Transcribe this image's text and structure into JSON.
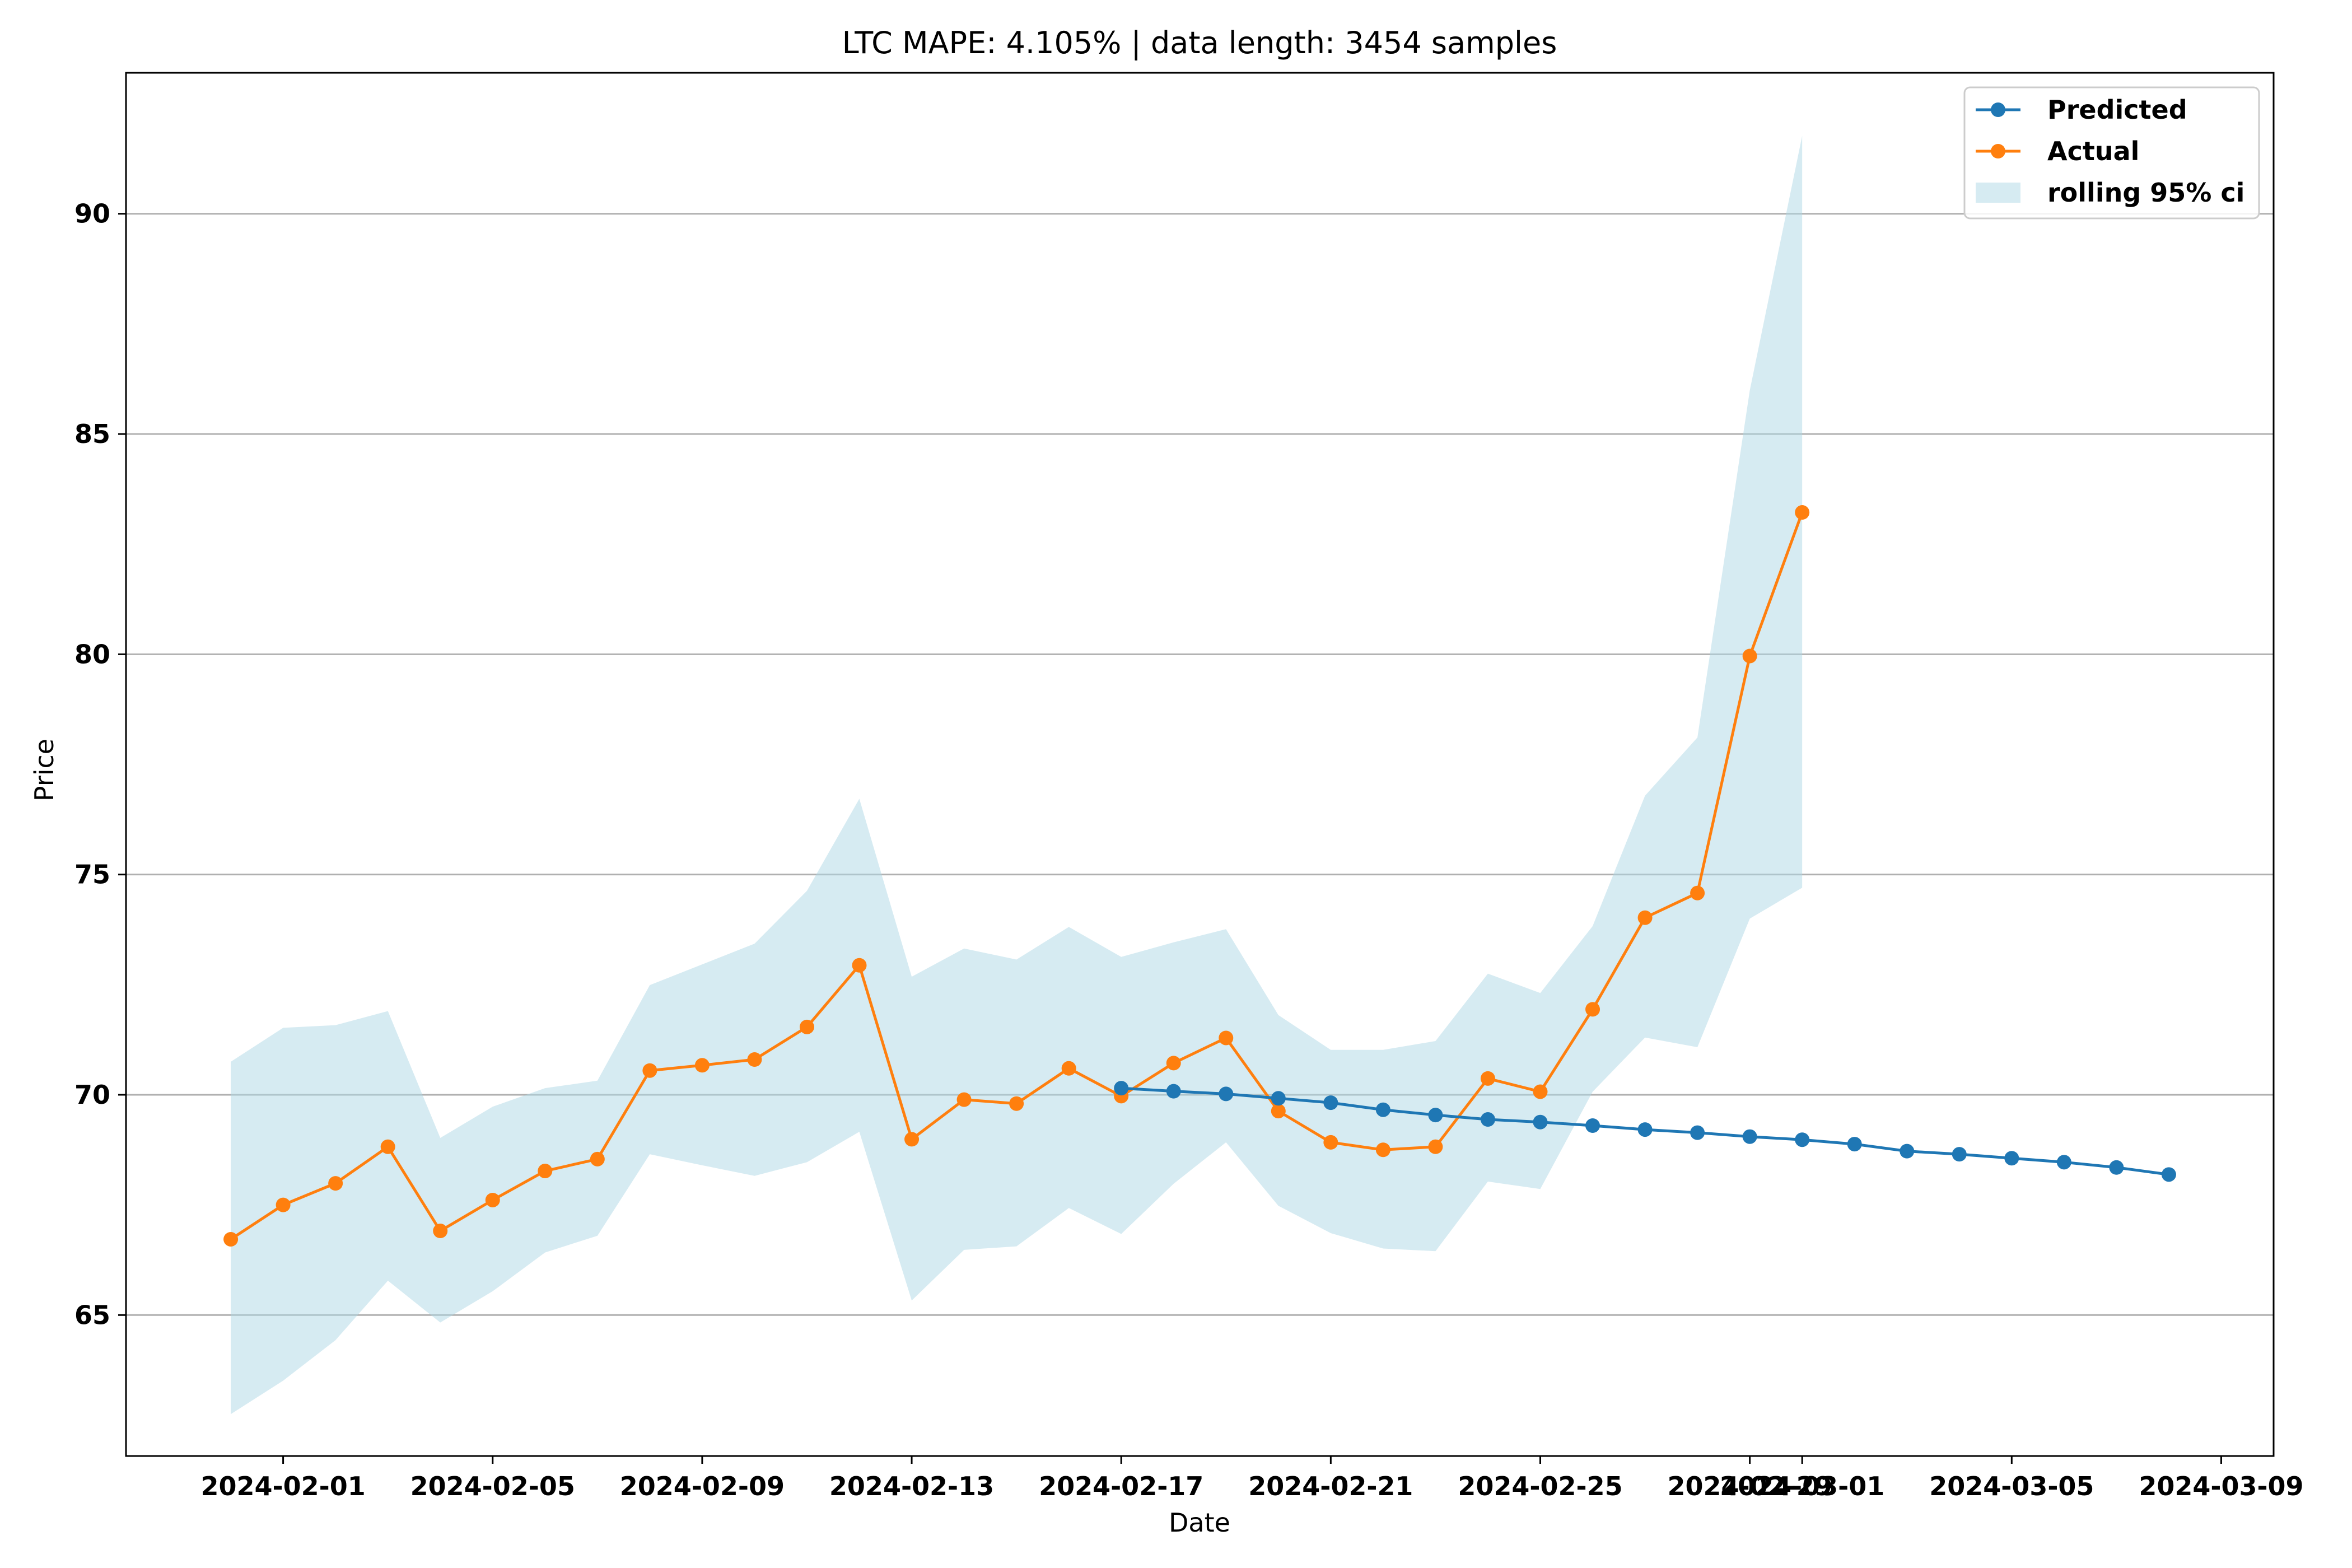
{
  "chart_data": {
    "type": "line",
    "title": "LTC MAPE: 4.105% | data length: 3454 samples",
    "xlabel": "Date",
    "ylabel": "Price",
    "x_axis": {
      "type": "date",
      "range": [
        "2024-01-29",
        "2024-03-10"
      ],
      "ticks": [
        "2024-02-01",
        "2024-02-05",
        "2024-02-09",
        "2024-02-13",
        "2024-02-17",
        "2024-02-21",
        "2024-02-25",
        "2024-02-29",
        "2024-03-01",
        "2024-03-05",
        "2024-03-09"
      ]
    },
    "y_axis": {
      "range": [
        61.8,
        93.2
      ],
      "ticks": [
        65,
        70,
        75,
        80,
        85,
        90
      ],
      "grid": true
    },
    "legend_position": "top-right",
    "series": [
      {
        "name": "Predicted",
        "kind": "line",
        "color": "#1f77b4",
        "marker": "circle",
        "x": [
          "2024-02-17",
          "2024-02-18",
          "2024-02-19",
          "2024-02-20",
          "2024-02-21",
          "2024-02-22",
          "2024-02-23",
          "2024-02-24",
          "2024-02-25",
          "2024-02-26",
          "2024-02-27",
          "2024-02-28",
          "2024-02-29",
          "2024-03-01",
          "2024-03-02",
          "2024-03-03",
          "2024-03-04",
          "2024-03-05",
          "2024-03-06",
          "2024-03-07",
          "2024-03-08"
        ],
        "y": [
          70.15,
          70.08,
          70.02,
          69.92,
          69.82,
          69.66,
          69.54,
          69.44,
          69.38,
          69.3,
          69.21,
          69.14,
          69.05,
          68.98,
          68.88,
          68.72,
          68.65,
          68.56,
          68.47,
          68.35,
          68.19
        ]
      },
      {
        "name": "Actual",
        "kind": "line",
        "color": "#ff7f0e",
        "marker": "circle",
        "x": [
          "2024-01-31",
          "2024-02-01",
          "2024-02-02",
          "2024-02-03",
          "2024-02-04",
          "2024-02-05",
          "2024-02-06",
          "2024-02-07",
          "2024-02-08",
          "2024-02-09",
          "2024-02-10",
          "2024-02-11",
          "2024-02-12",
          "2024-02-13",
          "2024-02-14",
          "2024-02-15",
          "2024-02-16",
          "2024-02-17",
          "2024-02-18",
          "2024-02-19",
          "2024-02-20",
          "2024-02-21",
          "2024-02-22",
          "2024-02-23",
          "2024-02-24",
          "2024-02-25",
          "2024-02-26",
          "2024-02-27",
          "2024-02-28",
          "2024-02-29",
          "2024-03-01"
        ],
        "y": [
          66.72,
          67.5,
          67.99,
          68.82,
          66.91,
          67.61,
          68.27,
          68.54,
          70.55,
          70.67,
          70.8,
          71.54,
          72.94,
          68.99,
          69.89,
          69.8,
          70.6,
          69.97,
          70.72,
          71.29,
          69.63,
          68.92,
          68.75,
          68.82,
          70.37,
          70.07,
          71.94,
          74.02,
          74.58,
          79.96,
          83.22
        ]
      },
      {
        "name": "rolling 95% ci",
        "kind": "area",
        "color": "#add8e6",
        "x": [
          "2024-01-31",
          "2024-02-01",
          "2024-02-02",
          "2024-02-03",
          "2024-02-04",
          "2024-02-05",
          "2024-02-06",
          "2024-02-07",
          "2024-02-08",
          "2024-02-09",
          "2024-02-10",
          "2024-02-11",
          "2024-02-12",
          "2024-02-13",
          "2024-02-14",
          "2024-02-15",
          "2024-02-16",
          "2024-02-17",
          "2024-02-18",
          "2024-02-19",
          "2024-02-20",
          "2024-02-21",
          "2024-02-22",
          "2024-02-23",
          "2024-02-24",
          "2024-02-25",
          "2024-02-26",
          "2024-02-27",
          "2024-02-28",
          "2024-02-29",
          "2024-03-01"
        ],
        "upper": [
          70.75,
          71.52,
          71.58,
          71.9,
          69.02,
          69.73,
          70.15,
          70.32,
          72.49,
          72.96,
          73.43,
          74.63,
          76.72,
          72.68,
          73.32,
          73.07,
          73.81,
          73.13,
          73.46,
          73.76,
          71.81,
          71.02,
          71.02,
          71.22,
          72.75,
          72.31,
          73.83,
          76.79,
          78.11,
          85.99,
          91.77
        ],
        "lower": [
          62.75,
          63.51,
          64.43,
          65.78,
          64.83,
          65.54,
          66.42,
          66.8,
          68.65,
          68.4,
          68.16,
          68.47,
          69.16,
          65.33,
          66.48,
          66.56,
          67.43,
          66.84,
          67.98,
          68.92,
          67.48,
          66.86,
          66.51,
          66.45,
          68.03,
          67.86,
          70.07,
          71.3,
          71.08,
          74.0,
          74.7
        ]
      }
    ]
  }
}
